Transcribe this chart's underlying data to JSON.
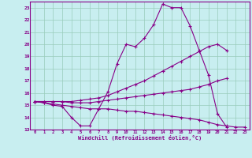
{
  "xlabel": "Windchill (Refroidissement éolien,°C)",
  "xlim": [
    -0.5,
    23.5
  ],
  "ylim": [
    13,
    23.5
  ],
  "xticks": [
    0,
    1,
    2,
    3,
    4,
    5,
    6,
    7,
    8,
    9,
    10,
    11,
    12,
    13,
    14,
    15,
    16,
    17,
    18,
    19,
    20,
    21,
    22,
    23
  ],
  "yticks": [
    13,
    14,
    15,
    16,
    17,
    18,
    19,
    20,
    21,
    22,
    23
  ],
  "bg_color": "#c8eef0",
  "line_color": "#880088",
  "grid_color": "#99ccbb",
  "lines": [
    {
      "x": [
        0,
        1,
        2,
        3,
        4,
        5,
        6,
        7,
        8,
        9,
        10,
        11,
        12,
        13,
        14,
        15,
        16,
        17,
        18,
        19,
        20,
        21
      ],
      "y": [
        15.3,
        15.2,
        15.0,
        14.9,
        14.0,
        13.3,
        13.3,
        14.7,
        16.1,
        18.4,
        20.0,
        19.8,
        20.5,
        21.6,
        23.3,
        23.0,
        23.0,
        21.5,
        19.5,
        17.5,
        14.3,
        13.2
      ]
    },
    {
      "x": [
        0,
        1,
        2,
        3,
        4,
        5,
        6,
        7,
        8,
        9,
        10,
        11,
        12,
        13,
        14,
        15,
        16,
        17,
        18,
        19,
        20,
        21
      ],
      "y": [
        15.3,
        15.3,
        15.3,
        15.3,
        15.3,
        15.4,
        15.5,
        15.6,
        15.8,
        16.1,
        16.4,
        16.7,
        17.0,
        17.4,
        17.8,
        18.2,
        18.6,
        19.0,
        19.4,
        19.8,
        20.0,
        19.5
      ]
    },
    {
      "x": [
        0,
        1,
        2,
        3,
        4,
        5,
        6,
        7,
        8,
        9,
        10,
        11,
        12,
        13,
        14,
        15,
        16,
        17,
        18,
        19,
        20,
        21,
        22,
        23
      ],
      "y": [
        15.3,
        15.2,
        15.1,
        15.0,
        14.9,
        14.8,
        14.7,
        14.7,
        14.7,
        14.6,
        14.5,
        14.5,
        14.4,
        14.3,
        14.2,
        14.1,
        14.0,
        13.9,
        13.8,
        13.6,
        13.4,
        13.3,
        13.2,
        13.2
      ]
    },
    {
      "x": [
        0,
        1,
        2,
        3,
        4,
        5,
        6,
        7,
        8,
        9,
        10,
        11,
        12,
        13,
        14,
        15,
        16,
        17,
        18,
        19,
        20,
        21
      ],
      "y": [
        15.3,
        15.3,
        15.3,
        15.3,
        15.2,
        15.2,
        15.2,
        15.3,
        15.4,
        15.5,
        15.6,
        15.7,
        15.8,
        15.9,
        16.0,
        16.1,
        16.2,
        16.3,
        16.5,
        16.7,
        17.0,
        17.2
      ]
    }
  ]
}
